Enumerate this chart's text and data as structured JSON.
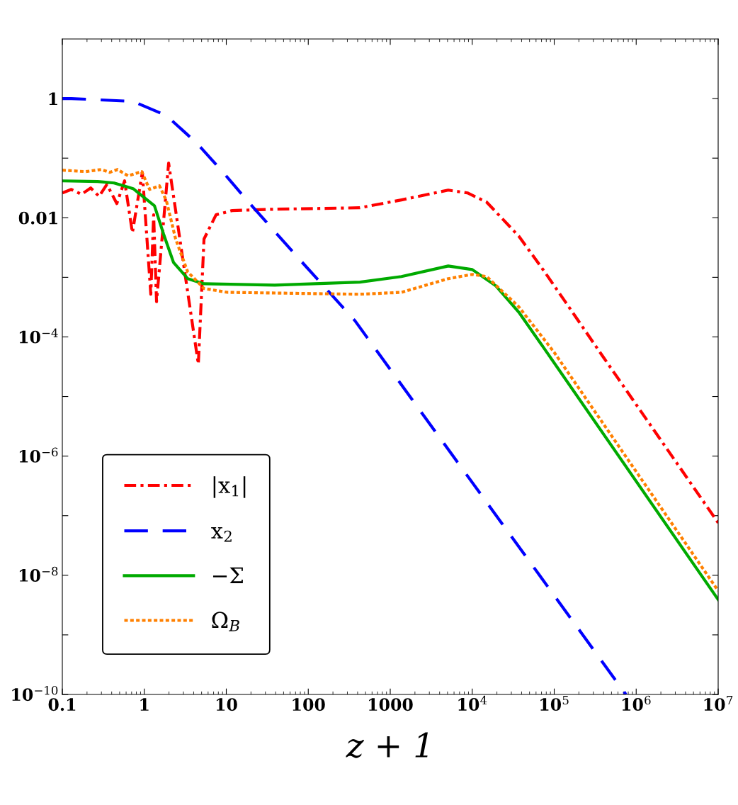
{
  "chart_data": {
    "type": "line",
    "xlabel": "z + 1",
    "log": "xy",
    "xlim": [
      0.1,
      10000000
    ],
    "ylim": [
      1e-10,
      10
    ],
    "xticks": [
      0.1,
      1,
      10,
      100,
      1000,
      {
        "value": 10000,
        "label": "10$^{4}$"
      },
      {
        "value": 100000,
        "label": "10$^{5}$"
      },
      {
        "value": 1000000,
        "label": "10$^{6}$"
      },
      {
        "value": 10000000,
        "label": "10$^{7}$"
      }
    ],
    "yticks": [
      {
        "value": 1e-10,
        "label": "10$^{−10}$"
      },
      {
        "value": 1e-09,
        "label": null
      },
      {
        "value": 1e-08,
        "label": "10$^{−8}$"
      },
      {
        "value": 1e-07,
        "label": null
      },
      {
        "value": 1e-06,
        "label": "10$^{−6}$"
      },
      {
        "value": 1e-05,
        "label": null
      },
      {
        "value": 0.0001,
        "label": "10$^{−4}$"
      },
      {
        "value": 0.001,
        "label": null
      },
      0.01,
      {
        "value": 0.1,
        "label": null
      },
      1
    ],
    "grid": false,
    "legend": "bottom left",
    "marker": "none",
    "series": [
      {
        "name": "|x$_{1}$|",
        "color": "#ff0000",
        "line_style": "dashdot",
        "x": [
          0.1,
          0.129,
          0.171,
          0.222,
          0.281,
          0.35,
          0.462,
          0.575,
          0.716,
          0.946,
          1.2,
          1.3,
          1.41,
          1.98,
          4.56,
          5.35,
          7.5,
          11.8,
          39,
          425,
          1370,
          5100,
          8740,
          15000,
          37000,
          73000,
          140000,
          380000,
          10000000
        ],
        "values": [
          0.0261,
          0.0299,
          0.0247,
          0.0316,
          0.0228,
          0.0363,
          0.0173,
          0.0416,
          0.0056,
          0.0578,
          0.00052,
          0.0112,
          0.00039,
          0.0826,
          3.5e-05,
          0.0044,
          0.0112,
          0.0132,
          0.0139,
          0.0147,
          0.0199,
          0.0291,
          0.0261,
          0.0183,
          0.0049,
          0.00135,
          0.00037,
          5e-05,
          7.6e-08
        ]
      },
      {
        "name": "x$_{2}$",
        "color": "#0000ff",
        "line_style": "dashed",
        "x": [
          0.1,
          0.129,
          0.73,
          1.86,
          4.38,
          9.14,
          18.7,
          81.5,
          370,
          750000
        ],
        "values": [
          1,
          1,
          0.896,
          0.518,
          0.178,
          0.0578,
          0.0183,
          0.00188,
          0.000188,
          1e-10
        ]
      },
      {
        "name": "−Σ",
        "color": "#00aa00",
        "line_style": "solid",
        "x": [
          0.1,
          0.27,
          0.428,
          0.6,
          0.73,
          1.03,
          1.33,
          1.72,
          2.27,
          3.38,
          5.35,
          39,
          425,
          1370,
          5100,
          10000,
          19400,
          37000,
          83000,
          10000000
        ],
        "values": [
          0.0416,
          0.0405,
          0.0383,
          0.0334,
          0.0308,
          0.021,
          0.0159,
          0.0053,
          0.00178,
          0.00095,
          0.00078,
          0.00074,
          0.00083,
          0.00103,
          0.00155,
          0.00135,
          0.00072,
          0.00026,
          5.3e-05,
          3.9e-09
        ]
      },
      {
        "name": "Ω$_{B}$",
        "color": "#ff8000",
        "line_style": "dotted",
        "x": [
          0.1,
          0.193,
          0.299,
          0.379,
          0.472,
          0.636,
          0.929,
          1.16,
          1.53,
          1.86,
          2.41,
          3.38,
          5.35,
          10.3,
          425,
          1370,
          5100,
          10000,
          15000,
          37000,
          100000,
          10000000
        ],
        "values": [
          0.0628,
          0.0594,
          0.0645,
          0.0578,
          0.0645,
          0.0504,
          0.0594,
          0.0299,
          0.0343,
          0.0193,
          0.0044,
          0.00124,
          0.00065,
          0.00056,
          0.00052,
          0.00056,
          0.00095,
          0.00112,
          0.00103,
          0.00032,
          5.5e-05,
          5.5e-09
        ]
      }
    ]
  }
}
